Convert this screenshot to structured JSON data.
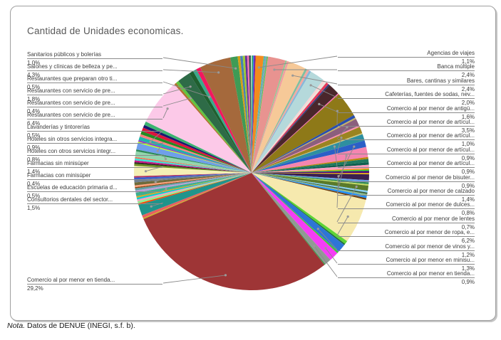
{
  "header": {
    "title": "Cantidad de Unidades economicas."
  },
  "note": {
    "italic": "Nota.",
    "text": " Datos de DENUE (INEGI, s.f. b)."
  },
  "chart_data": {
    "type": "pie",
    "title": "Cantidad de Unidades economicas.",
    "unit": "percent",
    "value_format": "comma decimal (es-MX), e.g. 29,2%",
    "legend_position": "none (callout labels with leader lines on both sides)",
    "start_angle": "12 o'clock, clockwise",
    "labeled_total_pct": 78.8,
    "unlabeled_note": "Slices with empty label are small unlabeled categories visible as thin colored slivers; their values are estimated from arc width.",
    "slice_fields": [
      "label",
      "pct_label",
      "value_pct",
      "color",
      "callout_side"
    ],
    "slices": [
      [
        "",
        "",
        0.2,
        "#3cb371",
        ""
      ],
      [
        "",
        "",
        0.2,
        "#4169e1",
        ""
      ],
      [
        "",
        "",
        0.15,
        "#8b008b",
        ""
      ],
      [
        "Agencias de viajes",
        "1,1%",
        1.1,
        "#f28c1e",
        "right"
      ],
      [
        "",
        "",
        0.2,
        "#4fb8a8",
        ""
      ],
      [
        "",
        "",
        0.2,
        "#7f9fbf",
        ""
      ],
      [
        "",
        "",
        0.2,
        "#6abf5f",
        ""
      ],
      [
        "Banca múltiple",
        "2,4%",
        2.4,
        "#e89390",
        "right"
      ],
      [
        "",
        "",
        0.2,
        "#90c890",
        ""
      ],
      [
        "",
        "",
        0.3,
        "#f0a0a0",
        ""
      ],
      [
        "Bares, cantinas y similares",
        "2,4%",
        2.4,
        "#f6c998",
        "right"
      ],
      [
        "",
        "",
        0.3,
        "#7fbfa0",
        ""
      ],
      [
        "",
        "",
        0.3,
        "#f4a8a0",
        ""
      ],
      [
        "",
        "",
        0.3,
        "#88b8d8",
        ""
      ],
      [
        "Cafeterías, fuentes de sodas, nev...",
        "2,0%",
        2.0,
        "#b5d9db",
        "right"
      ],
      [
        "",
        "",
        0.3,
        "#f6d5d5",
        ""
      ],
      [
        "",
        "",
        0.25,
        "#ece4da",
        ""
      ],
      [
        "",
        "",
        0.35,
        "#e43a5a",
        ""
      ],
      [
        "",
        "",
        0.2,
        "#2a3f7f",
        ""
      ],
      [
        "Comercio al por menor de antigü...",
        "1,6%",
        1.6,
        "#4a262b",
        "right"
      ],
      [
        "",
        "",
        0.15,
        "#ff69b4",
        ""
      ],
      [
        "Comercio al por menor de artícul...",
        "3,5%",
        3.5,
        "#8e7918",
        "right"
      ],
      [
        "",
        "",
        0.4,
        "#2a4fae",
        ""
      ],
      [
        "",
        "",
        0.2,
        "#c8b560",
        ""
      ],
      [
        "Comercio al por menor de artícul...",
        "1,0%",
        1.0,
        "#8b5f7d",
        "right"
      ],
      [
        "",
        "",
        0.2,
        "#ff8fb0",
        ""
      ],
      [
        "Comercio al por menor de artícul...",
        "0,9%",
        0.9,
        "#9a8420",
        "right"
      ],
      [
        "",
        "",
        0.15,
        "#d4c87a",
        ""
      ],
      [
        "Comercio al por menor de artícul...",
        "0,9%",
        0.9,
        "#2e8fa0",
        "right"
      ],
      [
        "Comercio al por menor de bisuter...",
        "0,9%",
        0.9,
        "#2b5fc7",
        "right"
      ],
      [
        "Comercio al por menor de calzado",
        "1,4%",
        1.4,
        "#f585b0",
        "right"
      ],
      [
        "",
        "",
        0.25,
        "#b8860b",
        ""
      ],
      [
        "",
        "",
        0.45,
        "#1f7a5f",
        ""
      ],
      [
        "",
        "",
        0.35,
        "#0f5f4f",
        ""
      ],
      [
        "",
        "",
        0.5,
        "#f59fc0",
        ""
      ],
      [
        "",
        "",
        0.15,
        "#ff8c00",
        ""
      ],
      [
        "",
        "",
        0.2,
        "#32cd32",
        ""
      ],
      [
        "",
        "",
        0.25,
        "#4b0082",
        ""
      ],
      [
        "",
        "",
        0.2,
        "#daa520",
        ""
      ],
      [
        "Comercio al por menor de dulces...",
        "0,8%",
        0.8,
        "#3b1f4e",
        "right"
      ],
      [
        "",
        "",
        0.3,
        "#6aa0e8",
        ""
      ],
      [
        "",
        "",
        0.25,
        "#2e8b57",
        ""
      ],
      [
        "",
        "",
        0.2,
        "#c0d860",
        ""
      ],
      [
        "Comercio al por menor de lentes",
        "0,7%",
        0.7,
        "#5a7a2a",
        "right"
      ],
      [
        "",
        "",
        0.25,
        "#87ceeb",
        ""
      ],
      [
        "",
        "",
        0.2,
        "#355e3b",
        ""
      ],
      [
        "",
        "",
        0.25,
        "#8fbc8f",
        ""
      ],
      [
        "",
        "",
        0.3,
        "#1e90ff",
        ""
      ],
      [
        "",
        "",
        0.25,
        "#704214",
        ""
      ],
      [
        "Comercio al por menor de ropa, e...",
        "6,2%",
        6.2,
        "#f6e9ae",
        "right"
      ],
      [
        "",
        "",
        0.45,
        "#5fd435",
        ""
      ],
      [
        "",
        "",
        0.2,
        "#1f6f3f",
        ""
      ],
      [
        "Comercio al por menor de vinos y...",
        "1,2%",
        1.2,
        "#2e75d6",
        "right"
      ],
      [
        "",
        "",
        0.25,
        "#44c23c",
        ""
      ],
      [
        "Comercio al por menor en minisu...",
        "1,3%",
        1.3,
        "#f53df5",
        "right"
      ],
      [
        "Comercio al por menor en tienda...",
        "0,9%",
        0.9,
        "#909a94",
        "right"
      ],
      [
        "",
        "",
        0.15,
        "#3a9a4a",
        ""
      ],
      [
        "Comercio al por menor en tienda...",
        "29,2%",
        29.2,
        "#9e3536",
        "left"
      ],
      [
        "",
        "",
        0.15,
        "#c8b818",
        ""
      ],
      [
        "",
        "",
        0.4,
        "#e86060",
        ""
      ],
      [
        "Consultorios dentales del sector...",
        "1,5%",
        1.5,
        "#20948b",
        "left"
      ],
      [
        "",
        "",
        0.2,
        "#ff4500",
        ""
      ],
      [
        "",
        "",
        0.3,
        "#90ee90",
        ""
      ],
      [
        "",
        "",
        0.25,
        "#f59fc0",
        ""
      ],
      [
        "",
        "",
        0.25,
        "#00ced1",
        ""
      ],
      [
        "",
        "",
        0.2,
        "#daa520",
        ""
      ],
      [
        "Escuelas de educación primaria d...",
        "0,5%",
        0.5,
        "#3cb08f",
        "left"
      ],
      [
        "",
        "",
        0.3,
        "#b8a0d8",
        ""
      ],
      [
        "",
        "",
        0.3,
        "#5f9ea0",
        ""
      ],
      [
        "",
        "",
        0.15,
        "#8b4513",
        ""
      ],
      [
        "",
        "",
        0.25,
        "#ffa07a",
        ""
      ],
      [
        "Farmacias con minisúper",
        "0,4%",
        0.4,
        "#6e6a3a",
        "left"
      ],
      [
        "",
        "",
        0.35,
        "#708090",
        ""
      ],
      [
        "",
        "",
        0.3,
        "#3a5fcd",
        ""
      ],
      [
        "",
        "",
        0.2,
        "#b03060",
        ""
      ],
      [
        "Farmacias sin minisúper",
        "1,4%",
        1.4,
        "#f4efb5",
        "left"
      ],
      [
        "",
        "",
        0.3,
        "#6b8e23",
        ""
      ],
      [
        "",
        "",
        0.2,
        "#26201a",
        ""
      ],
      [
        "",
        "",
        0.25,
        "#c71585",
        ""
      ],
      [
        "",
        "",
        0.3,
        "#40e0d0",
        ""
      ],
      [
        "",
        "",
        0.15,
        "#ff6347",
        ""
      ],
      [
        "Hoteles con otros servicios integr...",
        "0,8%",
        0.8,
        "#93d6ad",
        "left"
      ],
      [
        "",
        "",
        0.25,
        "#2e8b57",
        ""
      ],
      [
        "Hoteles sin otros servicios integra...",
        "0,9%",
        0.9,
        "#6f9fea",
        "left"
      ],
      [
        "",
        "",
        0.2,
        "#adff2f",
        ""
      ],
      [
        "",
        "",
        0.2,
        "#9932cc",
        ""
      ],
      [
        "Lavanderías y tintorerías",
        "0,5%",
        0.5,
        "#20b2aa",
        "left"
      ],
      [
        "",
        "",
        0.35,
        "#ff7f7f",
        ""
      ],
      [
        "",
        "",
        0.45,
        "#228b22",
        ""
      ],
      [
        "",
        "",
        0.5,
        "#dc143c",
        ""
      ],
      [
        "",
        "",
        0.4,
        "#191970",
        ""
      ],
      [
        "",
        "",
        0.5,
        "#3cb371",
        ""
      ],
      [
        "Restaurantes con servicio de pre...",
        "6,4%",
        6.4,
        "#fcc9e8",
        "left"
      ],
      [
        "",
        "",
        0.3,
        "#b07030",
        ""
      ],
      [
        "Restaurantes con servicio de pre...",
        "0,4%",
        0.4,
        "#5fc53f",
        "left"
      ],
      [
        "Restaurantes con servicio de pre...",
        "1,8%",
        1.8,
        "#2e6b47",
        "left"
      ],
      [
        "",
        "",
        0.6,
        "#1f5f2f",
        ""
      ],
      [
        "Restaurantes que preparan otro ti...",
        "0,5%",
        0.5,
        "#3aa88a",
        "left"
      ],
      [
        "",
        "",
        0.6,
        "#f2175f",
        ""
      ],
      [
        "Salones y clínicas de belleza y pe...",
        "4,3%",
        4.3,
        "#a5693c",
        "left"
      ],
      [
        "Sanitarios públicos y bolerías",
        "1,0%",
        1.0,
        "#3f9b55",
        "left"
      ],
      [
        "",
        "",
        0.35,
        "#d4a017",
        ""
      ],
      [
        "",
        "",
        0.35,
        "#4682b4",
        ""
      ],
      [
        "",
        "",
        0.3,
        "#9acd32",
        ""
      ],
      [
        "",
        "",
        0.3,
        "#663399",
        ""
      ],
      [
        "",
        "",
        0.25,
        "#f575b5",
        ""
      ],
      [
        "",
        "",
        0.25,
        "#2f4f4f",
        ""
      ]
    ],
    "layout_hints": {
      "pie_center": [
        353,
        243
      ],
      "pie_radius": 165,
      "leader_line_color": "#8a8a8a",
      "label_text_color": "#3d3d3d"
    }
  }
}
